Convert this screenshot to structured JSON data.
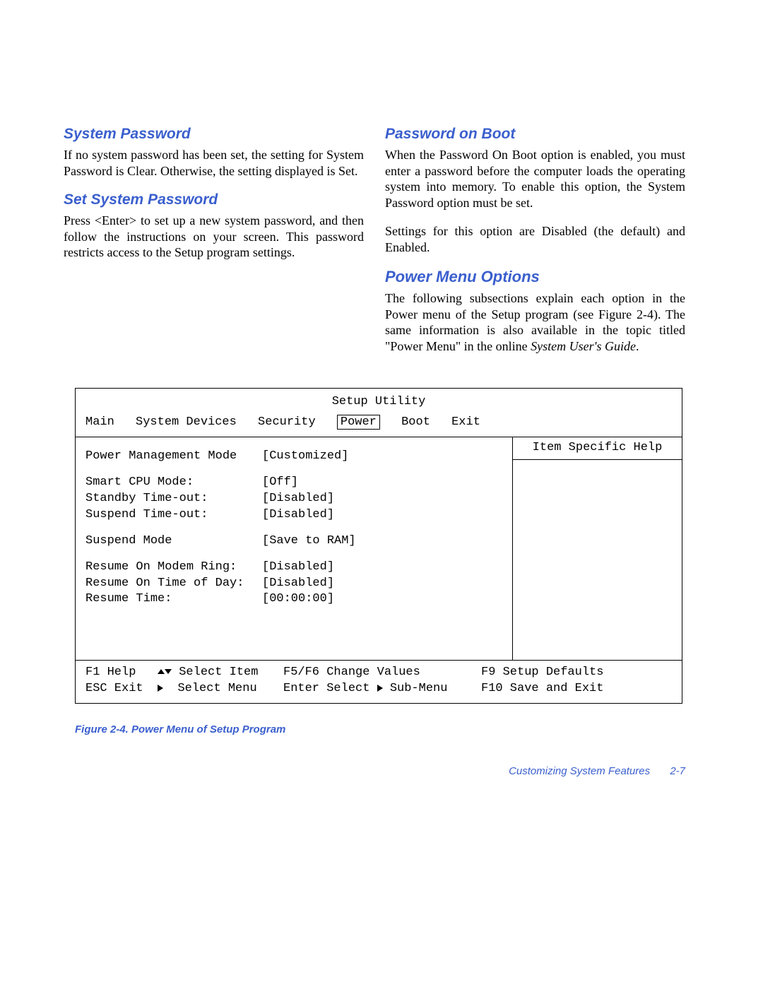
{
  "colors": {
    "heading": "#3a5fcd",
    "text": "#000000",
    "background": "#ffffff",
    "border": "#000000"
  },
  "typography": {
    "heading_family": "Arial",
    "heading_style": "italic bold",
    "heading_size_pt": 16,
    "body_family": "Times New Roman",
    "body_size_pt": 14,
    "mono_family": "Courier New",
    "mono_size_pt": 13
  },
  "left": {
    "h1": "System Password",
    "p1": "If no system password has been set, the setting for System Password is Clear. Otherwise, the setting displayed is Set.",
    "h2": "Set System Password",
    "p2": "Press <Enter> to set up a new system password, and then follow the instructions on your screen. This password restricts access to the Setup program settings."
  },
  "right": {
    "h1": "Password on Boot",
    "p1": "When the Password On Boot option is enabled, you must enter a password before the computer loads the operating system into memory. To enable this option, the System Password option must be set.",
    "p2": "Settings for this option are Disabled (the default) and Enabled.",
    "h2": "Power Menu Options",
    "p3a": "The following subsections explain each option in the Power menu of the Setup program (see Figure 2-4). The same information is also available in the topic titled \"Power Menu\" in the online ",
    "p3b": "System User's Guide",
    "p3c": "."
  },
  "setup": {
    "title": "Setup Utility",
    "menu": [
      "Main",
      "System Devices",
      "Security",
      "Power",
      "Boot",
      "Exit"
    ],
    "selected_menu": "Power",
    "help_title": "Item Specific Help",
    "groups": [
      [
        {
          "label": "Power Management Mode",
          "value": "[Customized]"
        }
      ],
      [
        {
          "label": "Smart CPU Mode:",
          "value": "[Off]"
        },
        {
          "label": "Standby Time-out:",
          "value": "[Disabled]"
        },
        {
          "label": "Suspend Time-out:",
          "value": "[Disabled]"
        }
      ],
      [
        {
          "label": "Suspend Mode",
          "value": "[Save to RAM]"
        }
      ],
      [
        {
          "label": "Resume On Modem Ring:",
          "value": "[Disabled]"
        },
        {
          "label": "Resume On Time of Day:",
          "value": "[Disabled]"
        },
        {
          "label": "Resume Time:",
          "value": "[00:00:00]"
        }
      ]
    ],
    "footer": {
      "f1": "F1 Help",
      "f2": "Select Item",
      "f3": "F5/F6 Change Values",
      "f4": "F9 Setup Defaults",
      "f5": "ESC Exit",
      "f6": "Select Menu",
      "f7": "Enter Select",
      "f7b": "Sub-Menu",
      "f8": "F10 Save and Exit"
    }
  },
  "caption": "Figure 2-4.  Power Menu of Setup Program",
  "page_footer": {
    "section": "Customizing System Features",
    "page": "2-7"
  }
}
